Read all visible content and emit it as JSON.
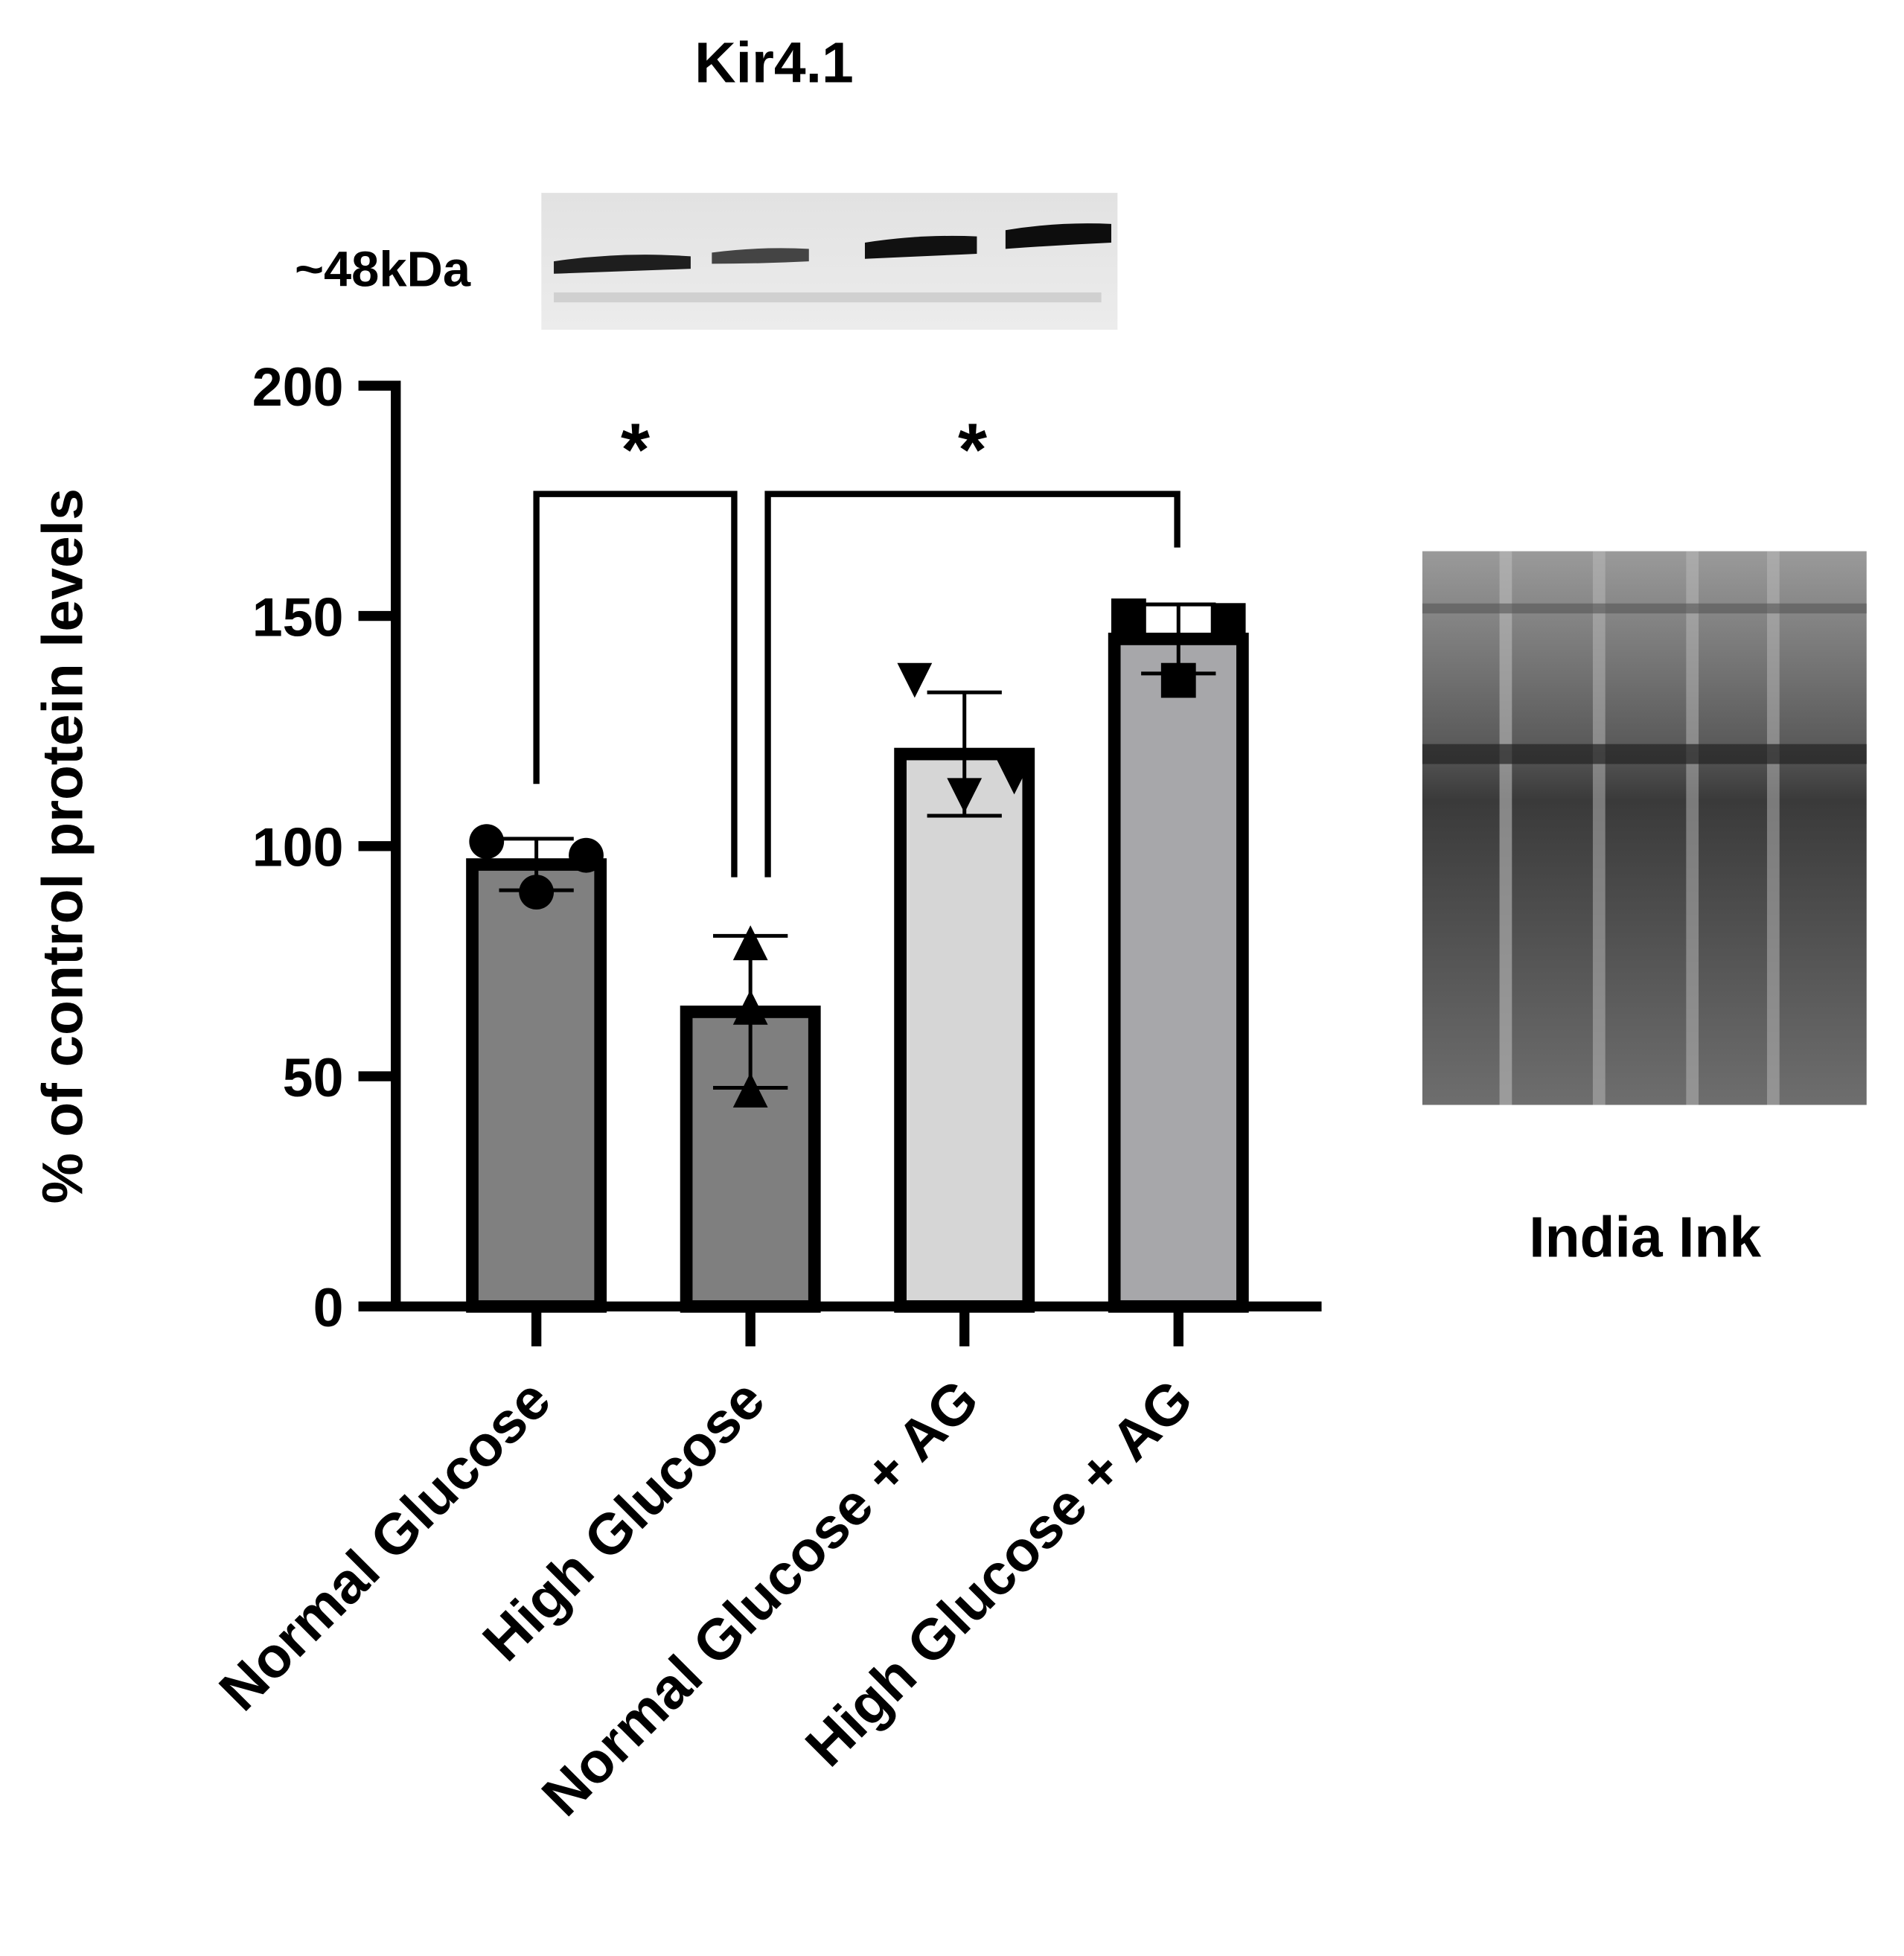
{
  "chart_data": {
    "type": "bar",
    "title": "Kir4.1",
    "ylabel": "% of  control protein levels",
    "categories": [
      "Normal Glucose",
      "High Glucose",
      "Normal Glucose + AG",
      "High Glucose + AG"
    ],
    "values": [
      96,
      64,
      120,
      145
    ],
    "errors": [
      5.6,
      16.5,
      13.4,
      7.5
    ],
    "colors": [
      "#808080",
      "#7f7f7f",
      "#d6d6d6",
      "#a7a7aa"
    ],
    "points": [
      [
        101,
        90,
        98
      ],
      [
        79,
        65,
        47
      ],
      [
        136,
        111,
        115
      ],
      [
        150,
        136,
        149
      ]
    ],
    "markers": [
      "circle",
      "triangle",
      "triangle-down",
      "square"
    ],
    "ylim": [
      0,
      200
    ],
    "yticks": [
      0,
      50,
      100,
      150,
      200
    ],
    "significance": [
      "*",
      "*"
    ],
    "blot_label": "~48kDa",
    "loading_label": "India  Ink"
  }
}
